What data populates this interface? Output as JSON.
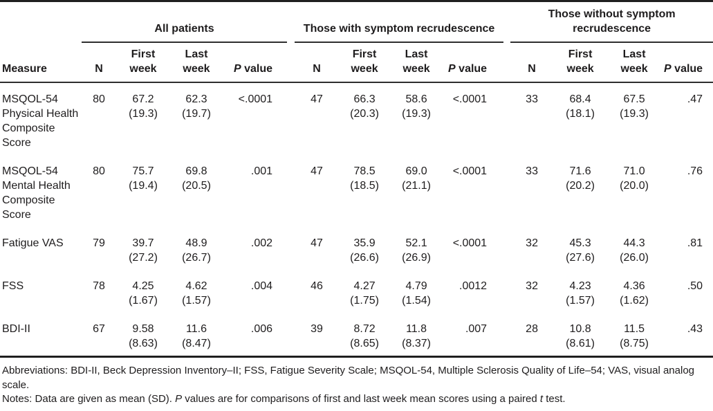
{
  "table": {
    "measure_header": "Measure",
    "groups": [
      {
        "label": "All patients"
      },
      {
        "label": "Those with symptom recrudescence"
      },
      {
        "label": "Those without symptom\nrecrudescence"
      }
    ],
    "sub": {
      "n": "N",
      "first": "First\nweek",
      "last": "Last\nweek",
      "p_italic": "P",
      "p_rest": " value"
    },
    "rows": [
      {
        "measure": "MSQOL-54\nPhysical Health\nComposite\nScore",
        "groups": [
          {
            "n": "80",
            "first": "67.2",
            "first_sd": "(19.3)",
            "last": "62.3",
            "last_sd": "(19.7)",
            "p": "<.0001"
          },
          {
            "n": "47",
            "first": "66.3",
            "first_sd": "(20.3)",
            "last": "58.6",
            "last_sd": "(19.3)",
            "p": "<.0001"
          },
          {
            "n": "33",
            "first": "68.4",
            "first_sd": "(18.1)",
            "last": "67.5",
            "last_sd": "(19.3)",
            "p": ".47"
          }
        ]
      },
      {
        "measure": "MSQOL-54\nMental Health\nComposite\nScore",
        "groups": [
          {
            "n": "80",
            "first": "75.7",
            "first_sd": "(19.4)",
            "last": "69.8",
            "last_sd": "(20.5)",
            "p": ".001"
          },
          {
            "n": "47",
            "first": "78.5",
            "first_sd": "(18.5)",
            "last": "69.0",
            "last_sd": "(21.1)",
            "p": "<.0001"
          },
          {
            "n": "33",
            "first": "71.6",
            "first_sd": "(20.2)",
            "last": "71.0",
            "last_sd": "(20.0)",
            "p": ".76"
          }
        ]
      },
      {
        "measure": "Fatigue VAS",
        "groups": [
          {
            "n": "79",
            "first": "39.7",
            "first_sd": "(27.2)",
            "last": "48.9",
            "last_sd": "(26.7)",
            "p": ".002"
          },
          {
            "n": "47",
            "first": "35.9",
            "first_sd": "(26.6)",
            "last": "52.1",
            "last_sd": "(26.9)",
            "p": "<.0001"
          },
          {
            "n": "32",
            "first": "45.3",
            "first_sd": "(27.6)",
            "last": "44.3",
            "last_sd": "(26.0)",
            "p": ".81"
          }
        ]
      },
      {
        "measure": "FSS",
        "groups": [
          {
            "n": "78",
            "first": "4.25",
            "first_sd": "(1.67)",
            "last": "4.62",
            "last_sd": "(1.57)",
            "p": ".004"
          },
          {
            "n": "46",
            "first": "4.27",
            "first_sd": "(1.75)",
            "last": "4.79",
            "last_sd": "(1.54)",
            "p": ".0012"
          },
          {
            "n": "32",
            "first": "4.23",
            "first_sd": "(1.57)",
            "last": "4.36",
            "last_sd": "(1.62)",
            "p": ".50"
          }
        ]
      },
      {
        "measure": "BDI-II",
        "groups": [
          {
            "n": "67",
            "first": "9.58",
            "first_sd": "(8.63)",
            "last": "11.6",
            "last_sd": "(8.47)",
            "p": ".006"
          },
          {
            "n": "39",
            "first": "8.72",
            "first_sd": "(8.65)",
            "last": "11.8",
            "last_sd": "(8.37)",
            "p": ".007"
          },
          {
            "n": "28",
            "first": "10.8",
            "first_sd": "(8.61)",
            "last": "11.5",
            "last_sd": "(8.75)",
            "p": ".43"
          }
        ]
      }
    ]
  },
  "footer": {
    "abbreviations": "Abbreviations: BDI-II, Beck Depression Inventory–II; FSS, Fatigue Severity Scale; MSQOL-54, Multiple Sclerosis Quality of Life–54; VAS, visual analog scale.",
    "notes_segments": [
      {
        "text": "Notes: Data are given as mean (SD). "
      },
      {
        "text": "P",
        "italic": true
      },
      {
        "text": " values are for comparisons of first and last week mean scores using a paired "
      },
      {
        "text": "t",
        "italic": true
      },
      {
        "text": " test."
      }
    ]
  }
}
